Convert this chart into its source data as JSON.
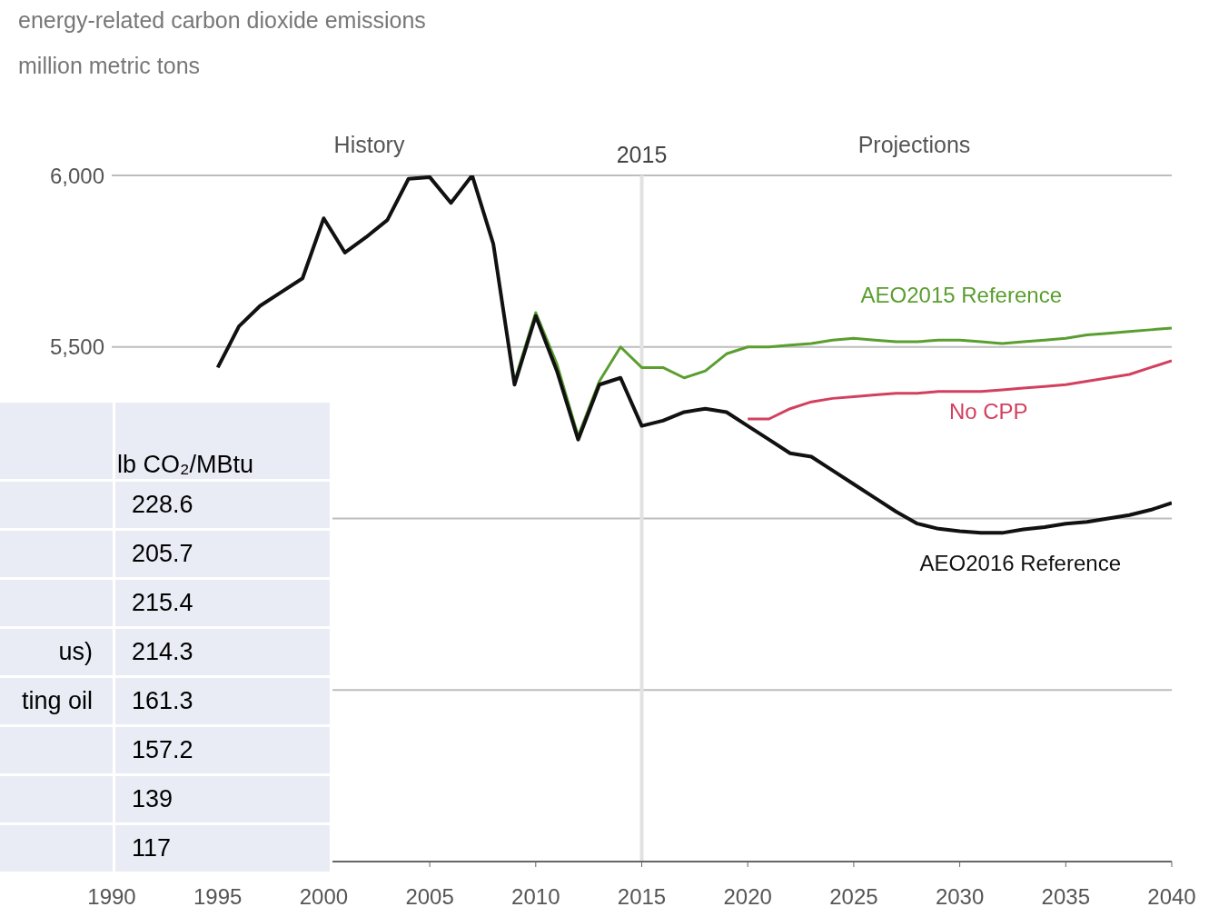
{
  "chart_data": [
    {
      "type": "line",
      "title": "energy-related carbon dioxide emissions",
      "subtitle": "million metric tons",
      "x": [
        1995,
        1996,
        1997,
        1998,
        1999,
        2000,
        2001,
        2002,
        2003,
        2004,
        2005,
        2006,
        2007,
        2008,
        2009,
        2010,
        2011,
        2012,
        2013,
        2014,
        2015,
        2016,
        2017,
        2018,
        2019,
        2020,
        2021,
        2022,
        2023,
        2024,
        2025,
        2026,
        2027,
        2028,
        2029,
        2030,
        2031,
        2032,
        2033,
        2034,
        2035,
        2036,
        2037,
        2038,
        2039,
        2040
      ],
      "series": [
        {
          "name": "AEO2015 Reference",
          "color": "#5a9e2f",
          "values": [
            null,
            null,
            null,
            null,
            null,
            null,
            null,
            null,
            null,
            null,
            null,
            null,
            null,
            null,
            5400,
            5600,
            5450,
            5240,
            5400,
            5500,
            5440,
            5440,
            5410,
            5430,
            5480,
            5500,
            5500,
            5505,
            5510,
            5520,
            5525,
            5520,
            5515,
            5515,
            5520,
            5520,
            5515,
            5510,
            5515,
            5520,
            5525,
            5535,
            5540,
            5545,
            5550,
            5555
          ]
        },
        {
          "name": "No CPP",
          "color": "#d3405f",
          "values": [
            null,
            null,
            null,
            null,
            null,
            null,
            null,
            null,
            null,
            null,
            null,
            null,
            null,
            null,
            null,
            null,
            null,
            null,
            null,
            null,
            null,
            null,
            null,
            null,
            null,
            5290,
            5290,
            5320,
            5340,
            5350,
            5355,
            5360,
            5365,
            5365,
            5370,
            5370,
            5370,
            5375,
            5380,
            5385,
            5390,
            5400,
            5410,
            5420,
            5440,
            5460
          ]
        },
        {
          "name": "AEO2016 Reference",
          "color": "#111111",
          "values": [
            5440,
            5560,
            5620,
            5660,
            5700,
            5875,
            5775,
            5820,
            5870,
            5990,
            5995,
            5920,
            6000,
            5800,
            5390,
            5590,
            5430,
            5230,
            5390,
            5410,
            5270,
            5285,
            5310,
            5320,
            5310,
            5270,
            5230,
            5190,
            5180,
            5140,
            5100,
            5060,
            5020,
            4985,
            4970,
            4963,
            4958,
            4958,
            4968,
            4975,
            4985,
            4990,
            5000,
            5010,
            5025,
            5045
          ]
        }
      ],
      "xlim": [
        1990,
        2040
      ],
      "xticks": [
        1990,
        1995,
        2000,
        2005,
        2010,
        2015,
        2020,
        2025,
        2030,
        2035,
        2040
      ],
      "ylim": [
        4000,
        6000
      ],
      "yticks": [
        {
          "value": 4000,
          "label": null
        },
        {
          "value": 4500,
          "label": null
        },
        {
          "value": 5000,
          "label": null
        },
        {
          "value": 5500,
          "label": "5,500"
        },
        {
          "value": 6000,
          "label": "6,000"
        }
      ],
      "grid": "y",
      "line_style": "solid",
      "marker": "none",
      "ref_lines": [
        {
          "axis": "x",
          "value": 2015,
          "label": "2015",
          "color": "#e2e2e2"
        }
      ],
      "annotations": [
        "History",
        "Projections"
      ]
    },
    {
      "type": "other",
      "ylabel": "lb CO₂/MBtu",
      "data_labels": true,
      "categories": [
        null,
        null,
        null,
        "us)",
        "ting oil",
        null,
        null,
        null
      ],
      "values": [
        228.6,
        205.7,
        215.4,
        214.3,
        161.3,
        157.2,
        139,
        117
      ]
    }
  ]
}
